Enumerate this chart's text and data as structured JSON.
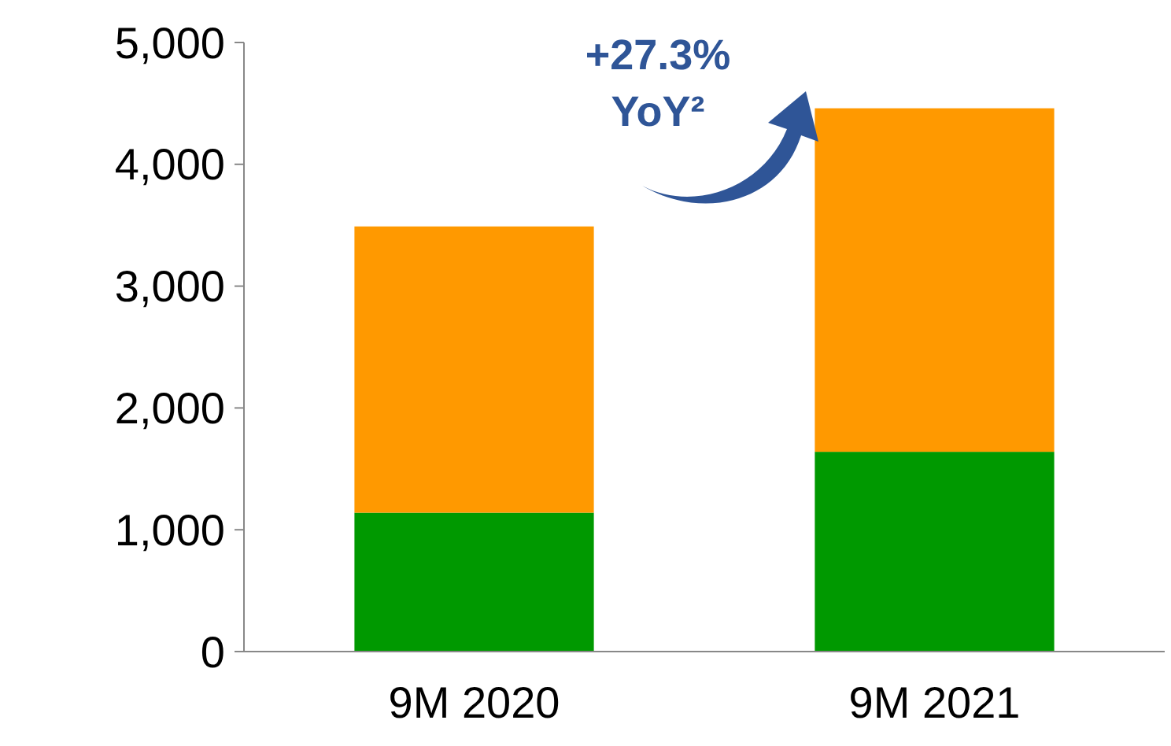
{
  "chart_data": {
    "type": "bar",
    "stacked": true,
    "categories": [
      "9M 2020",
      "9M 2021"
    ],
    "series": [
      {
        "color": "#009900",
        "values": [
          1140,
          1640
        ]
      },
      {
        "color": "#ff9900",
        "values": [
          2350,
          2820
        ]
      }
    ],
    "ylim": [
      0,
      5000
    ],
    "yticks": [
      {
        "value": 0,
        "label": "0"
      },
      {
        "value": 1000,
        "label": "1,000"
      },
      {
        "value": 2000,
        "label": "2,000"
      },
      {
        "value": 3000,
        "label": "3,000"
      },
      {
        "value": 4000,
        "label": "4,000"
      },
      {
        "value": 5000,
        "label": "5,000"
      }
    ],
    "grid": false,
    "annotations": [
      "+27.3%",
      "YoY²"
    ]
  }
}
